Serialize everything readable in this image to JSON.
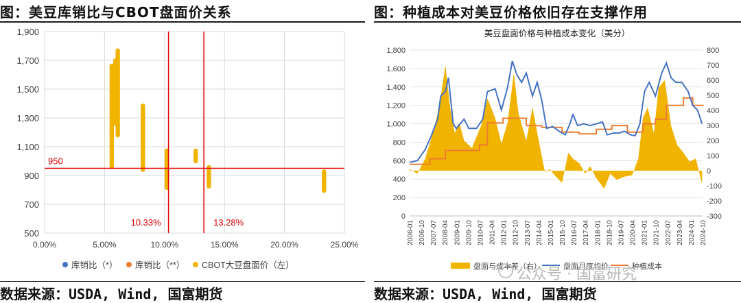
{
  "left": {
    "title": "图：美豆库销比与CBOT盘面价关系",
    "source": "数据来源：USDA, Wind, 国富期货",
    "chart_data": {
      "type": "scatter",
      "x_ticks": [
        "0.00%",
        "5.00%",
        "10.00%",
        "15.00%",
        "20.00%",
        "25.00%"
      ],
      "y_ticks": [
        "500",
        "700",
        "900",
        "1,100",
        "1,300",
        "1,500",
        "1,700",
        "1,900"
      ],
      "xlim": [
        0,
        25
      ],
      "ylim": [
        500,
        1900
      ],
      "grid": true,
      "legend": [
        "库销比（*）",
        "库销比（**）",
        "CBOT大豆盘面价（左）"
      ],
      "legend_position": "bottom",
      "colors": {
        "series1": "#4472c4",
        "series2": "#ed7d31",
        "series3": "#f0b400",
        "reference": "#e00000"
      },
      "series": [
        {
          "name": "CBOT大豆盘面价（左）",
          "points": [
            {
              "x": 5.6,
              "y_min": 960,
              "y_max": 1665
            },
            {
              "x": 5.9,
              "y_min": 1260,
              "y_max": 1700
            },
            {
              "x": 6.1,
              "y_min": 1180,
              "y_max": 1770
            },
            {
              "x": 8.2,
              "y_min": 940,
              "y_max": 1385
            },
            {
              "x": 10.2,
              "y_min": 815,
              "y_max": 1075
            },
            {
              "x": 12.6,
              "y_min": 1000,
              "y_max": 1075
            },
            {
              "x": 13.7,
              "y_min": 825,
              "y_max": 960
            },
            {
              "x": 23.3,
              "y_min": 795,
              "y_max": 930
            }
          ]
        }
      ],
      "reference_lines": {
        "h": 950,
        "v": [
          10.33,
          13.28
        ]
      },
      "annotations": [
        "950",
        "10.33%",
        "13.28%"
      ]
    }
  },
  "right": {
    "title": "图：种植成本对美豆价格依旧存在支撑作用",
    "source": "数据来源：USDA, Wind, 国富期货",
    "watermark": "公众号 · 国富研究",
    "chart_data": {
      "type": "line",
      "title": "美豆盘面价格与种植成本变化（美分）",
      "x_labels": [
        "2006-01",
        "2006-10",
        "2007-07",
        "2008-04",
        "2009-01",
        "2009-10",
        "2010-07",
        "2011-04",
        "2012-01",
        "2012-10",
        "2013-07",
        "2014-04",
        "2015-01",
        "2015-10",
        "2016-07",
        "2017-04",
        "2018-01",
        "2018-10",
        "2019-07",
        "2020-04",
        "2021-01",
        "2021-10",
        "2022-07",
        "2023-04",
        "2024-01",
        "2024-10"
      ],
      "y_left_ticks": [
        "0",
        "200",
        "400",
        "600",
        "800",
        "1,000",
        "1,200",
        "1,400",
        "1,600",
        "1,800"
      ],
      "y_right_ticks": [
        "-300",
        "-200",
        "-100",
        "0",
        "100",
        "200",
        "300",
        "400",
        "500",
        "600",
        "700",
        "800"
      ],
      "ylim_left": [
        0,
        1800
      ],
      "ylim_right": [
        -300,
        800
      ],
      "legend": [
        "盘面与成本差（右）",
        "盘面月度均价",
        "种植成本"
      ],
      "legend_position": "bottom",
      "colors": {
        "diff": "#f0b400",
        "price": "#4472c4",
        "cost": "#ed7d31"
      },
      "series": [
        {
          "name": "盘面月度均价",
          "x_year": [
            2006.0,
            2006.5,
            2007.0,
            2007.4,
            2007.8,
            2008.0,
            2008.3,
            2008.5,
            2008.8,
            2009.0,
            2009.5,
            2009.8,
            2010.3,
            2010.7,
            2011.0,
            2011.5,
            2011.9,
            2012.3,
            2012.6,
            2012.9,
            2013.2,
            2013.5,
            2013.9,
            2014.2,
            2014.5,
            2014.8,
            2015.2,
            2015.6,
            2016.0,
            2016.3,
            2016.5,
            2016.8,
            2017.2,
            2017.6,
            2018.0,
            2018.4,
            2018.7,
            2019.1,
            2019.5,
            2019.8,
            2020.2,
            2020.5,
            2020.8,
            2021.1,
            2021.4,
            2021.8,
            2022.2,
            2022.5,
            2022.8,
            2023.1,
            2023.5,
            2023.9,
            2024.2,
            2024.5,
            2024.8
          ],
          "y": [
            580,
            600,
            720,
            870,
            1050,
            1300,
            1350,
            1500,
            1000,
            950,
            1050,
            950,
            950,
            1050,
            1350,
            1380,
            1150,
            1400,
            1680,
            1530,
            1450,
            1550,
            1300,
            1450,
            1250,
            950,
            970,
            920,
            880,
            1000,
            1100,
            980,
            1000,
            980,
            1000,
            1020,
            880,
            900,
            900,
            920,
            880,
            870,
            1000,
            1350,
            1450,
            1300,
            1550,
            1660,
            1500,
            1450,
            1450,
            1350,
            1200,
            1150,
            1000
          ]
        },
        {
          "name": "种植成本",
          "x_year": [
            2006.0,
            2007.3,
            2007.3,
            2008.3,
            2008.3,
            2010.5,
            2010.5,
            2011.0,
            2011.0,
            2012.0,
            2012.0,
            2013.5,
            2013.5,
            2014.5,
            2014.5,
            2015.8,
            2015.8,
            2016.9,
            2016.9,
            2018.0,
            2018.0,
            2019.0,
            2019.0,
            2020.0,
            2020.0,
            2021.0,
            2021.0,
            2021.8,
            2021.8,
            2022.5,
            2022.5,
            2023.6,
            2023.6,
            2024.2,
            2024.2,
            2024.9
          ],
          "y": [
            560,
            560,
            620,
            620,
            710,
            710,
            770,
            770,
            1010,
            1010,
            1060,
            1060,
            980,
            980,
            960,
            960,
            910,
            910,
            890,
            890,
            940,
            940,
            980,
            980,
            910,
            910,
            1000,
            1000,
            1050,
            1050,
            1200,
            1200,
            1280,
            1280,
            1200,
            1200
          ]
        },
        {
          "name": "盘面与成本差（右）",
          "x_year": [
            2006.0,
            2006.5,
            2007.0,
            2007.5,
            2007.9,
            2008.3,
            2008.6,
            2008.9,
            2009.2,
            2009.5,
            2010.0,
            2010.6,
            2011.0,
            2011.5,
            2011.9,
            2012.3,
            2012.7,
            2013.0,
            2013.5,
            2013.9,
            2014.3,
            2014.7,
            2015.0,
            2015.4,
            2015.8,
            2016.2,
            2016.5,
            2016.9,
            2017.3,
            2017.6,
            2018.0,
            2018.5,
            2018.9,
            2019.3,
            2019.8,
            2020.3,
            2020.7,
            2021.0,
            2021.3,
            2021.7,
            2022.0,
            2022.4,
            2022.8,
            2023.2,
            2023.6,
            2024.0,
            2024.4,
            2024.8
          ],
          "y": [
            10,
            -20,
            80,
            250,
            420,
            700,
            420,
            250,
            320,
            200,
            150,
            300,
            480,
            350,
            180,
            320,
            650,
            380,
            200,
            420,
            200,
            -10,
            10,
            -40,
            -80,
            120,
            80,
            50,
            -20,
            30,
            -50,
            -120,
            -20,
            -60,
            -40,
            -30,
            80,
            350,
            420,
            250,
            550,
            600,
            300,
            170,
            120,
            60,
            80,
            -90
          ]
        }
      ]
    }
  }
}
